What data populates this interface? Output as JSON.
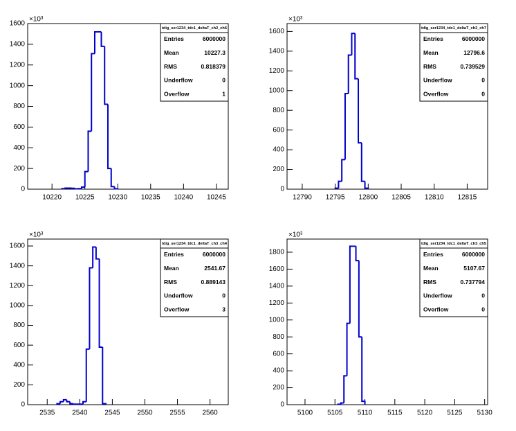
{
  "chart_data": [
    {
      "type": "histogram",
      "title": "tdig_ser1234_tdc1_deltaT_ch2_ch6",
      "color": "#0000cc",
      "yunit": "×10³",
      "bins": [
        10221.5,
        10222,
        10222.5,
        10223,
        10223.5,
        10224,
        10224.5,
        10225,
        10225.5,
        10226,
        10226.5,
        10227,
        10227.5,
        10228,
        10228.5,
        10229,
        10229.5,
        10230
      ],
      "values": [
        5,
        10,
        10,
        8,
        3,
        5,
        20,
        170,
        560,
        1310,
        1520,
        1520,
        1380,
        820,
        200,
        25,
        3
      ],
      "xlim": [
        10216.3,
        10246.8
      ],
      "xticks": [
        10220,
        10225,
        10230,
        10235,
        10240,
        10245
      ],
      "ylim": [
        0,
        1600
      ],
      "yticks": [
        0,
        200,
        400,
        600,
        800,
        1000,
        1200,
        1400,
        1600
      ],
      "stats": [
        {
          "label": "Entries",
          "value": 6000000
        },
        {
          "label": "Mean",
          "value": 10227.3
        },
        {
          "label": "RMS",
          "value": 0.818379
        },
        {
          "label": "Underflow",
          "value": 0
        },
        {
          "label": "Overflow",
          "value": 1
        }
      ]
    },
    {
      "type": "histogram",
      "title": "tdig_ser1234_tdc1_deltaT_ch2_ch7",
      "color": "#0000cc",
      "yunit": "×10³",
      "bins": [
        12795,
        12795.5,
        12796,
        12796.5,
        12797,
        12797.5,
        12798,
        12798.5,
        12799,
        12799.5,
        12800
      ],
      "values": [
        10,
        80,
        300,
        970,
        1360,
        1580,
        1120,
        470,
        80,
        10
      ],
      "xlim": [
        12787.7,
        12818.1
      ],
      "xticks": [
        12790,
        12795,
        12800,
        12805,
        12810,
        12815
      ],
      "ylim": [
        0,
        1680
      ],
      "yticks": [
        0,
        200,
        400,
        600,
        800,
        1000,
        1200,
        1400,
        1600
      ],
      "stats": [
        {
          "label": "Entries",
          "value": 6000000
        },
        {
          "label": "Mean",
          "value": 12796.6
        },
        {
          "label": "RMS",
          "value": 0.739529
        },
        {
          "label": "Underflow",
          "value": 0
        },
        {
          "label": "Overflow",
          "value": 0
        }
      ]
    },
    {
      "type": "histogram",
      "title": "tdig_ser1234_tdc1_deltaT_ch3_ch4",
      "color": "#0000cc",
      "yunit": "×10³",
      "bins": [
        2536.5,
        2537,
        2537.5,
        2538,
        2538.5,
        2539,
        2539.5,
        2540,
        2540.5,
        2541,
        2541.5,
        2542,
        2542.5,
        2543,
        2543.5,
        2544
      ],
      "values": [
        10,
        30,
        50,
        30,
        10,
        5,
        5,
        5,
        30,
        560,
        1380,
        1590,
        1470,
        580,
        10
      ],
      "xlim": [
        2532.0,
        2562.8
      ],
      "xticks": [
        2535,
        2540,
        2545,
        2550,
        2555,
        2560
      ],
      "ylim": [
        0,
        1670
      ],
      "yticks": [
        0,
        200,
        400,
        600,
        800,
        1000,
        1200,
        1400,
        1600
      ],
      "stats": [
        {
          "label": "Entries",
          "value": 6000000
        },
        {
          "label": "Mean",
          "value": 2541.67
        },
        {
          "label": "RMS",
          "value": 0.889143
        },
        {
          "label": "Underflow",
          "value": 0
        },
        {
          "label": "Overflow",
          "value": 3
        }
      ]
    },
    {
      "type": "histogram",
      "title": "tdig_ser1234_tdc1_deltaT_ch3_ch5",
      "color": "#0000cc",
      "yunit": "×10³",
      "bins": [
        5105.5,
        5106,
        5106.5,
        5107,
        5107.5,
        5108,
        5108.5,
        5109,
        5109.5,
        5110
      ],
      "values": [
        5,
        20,
        340,
        960,
        1870,
        1870,
        1700,
        800,
        40
      ],
      "xlim": [
        5097,
        5130.5
      ],
      "xticks": [
        5100,
        5105,
        5110,
        5115,
        5120,
        5125,
        5130
      ],
      "ylim": [
        0,
        1955
      ],
      "yticks": [
        0,
        200,
        400,
        600,
        800,
        1000,
        1200,
        1400,
        1600,
        1800
      ],
      "stats": [
        {
          "label": "Entries",
          "value": 6000000
        },
        {
          "label": "Mean",
          "value": 5107.67
        },
        {
          "label": "RMS",
          "value": 0.737794
        },
        {
          "label": "Underflow",
          "value": 0
        },
        {
          "label": "Overflow",
          "value": 0
        }
      ]
    }
  ]
}
